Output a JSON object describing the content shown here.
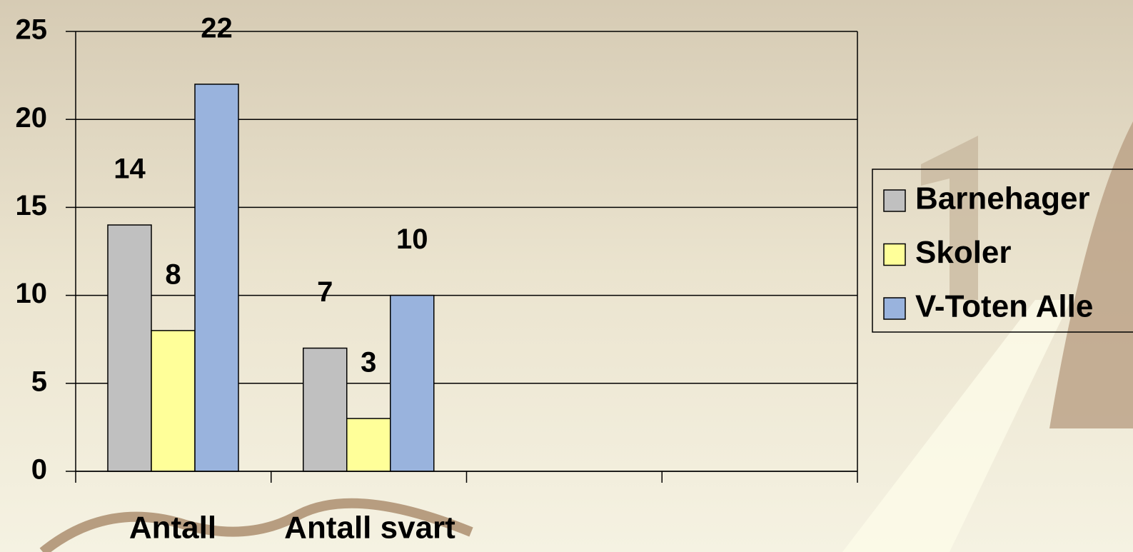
{
  "chart_data": {
    "type": "bar",
    "categories": [
      "Antall",
      "Antall svart",
      null,
      null
    ],
    "series": [
      {
        "name": "Barnehager",
        "color": "#c0c0c0",
        "values": [
          14,
          7,
          null,
          null
        ]
      },
      {
        "name": "Skoler",
        "color": "#ffff99",
        "values": [
          8,
          3,
          null,
          null
        ]
      },
      {
        "name": "V-Toten Alle",
        "color": "#99b3dd",
        "values": [
          22,
          10,
          null,
          null
        ]
      }
    ],
    "ylim": [
      0,
      25
    ],
    "yticks": [
      0,
      5,
      10,
      15,
      20,
      25
    ],
    "grid": true,
    "legend": "right"
  }
}
